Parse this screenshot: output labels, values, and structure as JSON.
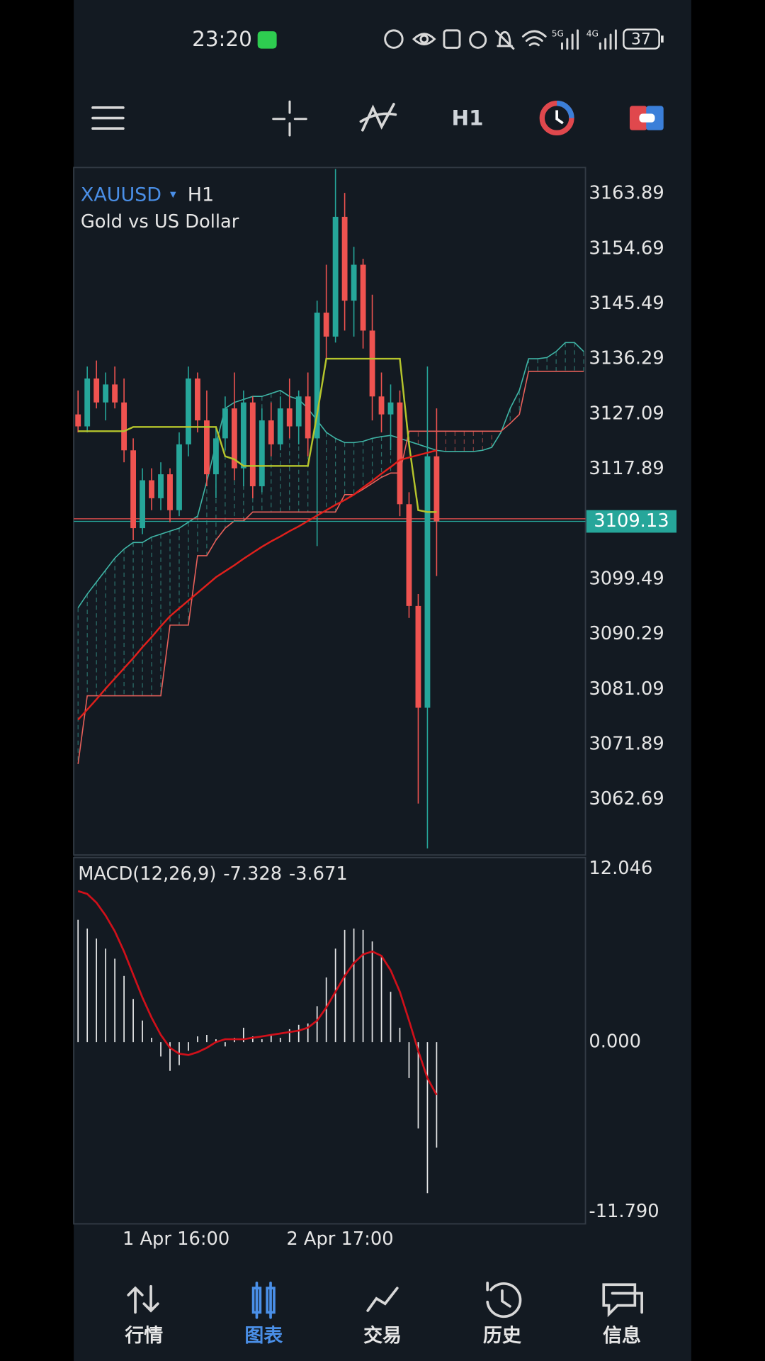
{
  "status_bar": {
    "time": "23:20",
    "battery": "37"
  },
  "toolbar": {
    "timeframe": "H1"
  },
  "chart": {
    "symbol": "XAUUSD",
    "timeframe": "H1",
    "description": "Gold vs US Dollar",
    "ylim": [
      3053.41,
      3168.24
    ],
    "yticks": [
      3163.89,
      3154.69,
      3145.49,
      3136.29,
      3127.09,
      3117.89,
      3099.49,
      3090.29,
      3081.09,
      3071.89,
      3062.69
    ],
    "current_price": 3109.13,
    "x_labels": [
      "1 Apr 16:00",
      "2 Apr 17:00"
    ],
    "up_color": "#26a69a",
    "down_color": "#ef5350",
    "candles": {
      "open": [
        3127,
        3125,
        3133,
        3129,
        3132,
        3129,
        3121,
        3108,
        3116,
        3113,
        3117,
        3111,
        3122,
        3133,
        3126,
        3117,
        3123,
        3128,
        3118,
        3129,
        3115,
        3126,
        3122,
        3128,
        3125,
        3130,
        3123,
        3144,
        3140,
        3160,
        3146,
        3152,
        3141,
        3130,
        3127,
        3129,
        3112,
        3095,
        3078,
        3120
      ],
      "high": [
        3131,
        3135,
        3136,
        3134,
        3135,
        3133,
        3123,
        3118,
        3118,
        3119,
        3118,
        3124,
        3135,
        3134,
        3131,
        3125,
        3130,
        3134,
        3131,
        3130,
        3128,
        3129,
        3130,
        3133,
        3131,
        3134,
        3146,
        3152,
        3168,
        3164,
        3155,
        3153,
        3147,
        3134,
        3132,
        3131,
        3114,
        3097,
        3135,
        3128
      ],
      "low": [
        3124,
        3124,
        3128,
        3126,
        3128,
        3119,
        3106,
        3107,
        3111,
        3111,
        3109,
        3110,
        3120,
        3124,
        3115,
        3113,
        3121,
        3116,
        3115,
        3113,
        3114,
        3120,
        3121,
        3123,
        3122,
        3120,
        3105,
        3136,
        3139,
        3141,
        3140,
        3138,
        3126,
        3124,
        3121,
        3110,
        3093,
        3062,
        3054.5,
        3100
      ],
      "close": [
        3125,
        3133,
        3129,
        3132,
        3129,
        3121,
        3108,
        3116,
        3113,
        3117,
        3111,
        3122,
        3133,
        3126,
        3117,
        3123,
        3128,
        3118,
        3129,
        3115,
        3126,
        3122,
        3128,
        3125,
        3130,
        3123,
        3144,
        3140,
        3160,
        3146,
        3152,
        3141,
        3130,
        3127,
        3129,
        3112,
        3095,
        3078,
        3120,
        3109.13
      ]
    },
    "ma": {
      "color": "#e0201c",
      "values": [
        3076,
        3077.7,
        3079.4,
        3081.2,
        3082.9,
        3084.6,
        3086.3,
        3088.1,
        3089.8,
        3091.6,
        3093.3,
        3094.6,
        3095.9,
        3097.2,
        3098.5,
        3099.8,
        3100.8,
        3101.8,
        3102.9,
        3103.9,
        3104.9,
        3105.8,
        3106.6,
        3107.5,
        3108.3,
        3109.2,
        3110.1,
        3111,
        3111.9,
        3112.7,
        3113.6,
        3114.8,
        3115.9,
        3117.1,
        3118.2,
        3119.4,
        3119.8,
        3120.2,
        3120.6,
        3121
      ]
    },
    "kijun": {
      "color": "#b5c42c",
      "values": [
        3124.2,
        3124.2,
        3124.2,
        3124.2,
        3124.2,
        3124.2,
        3124.9,
        3124.9,
        3124.9,
        3124.9,
        3124.9,
        3124.9,
        3124.9,
        3124.9,
        3124.9,
        3124.9,
        3120,
        3119.5,
        3118.4,
        3118.4,
        3118.4,
        3118.4,
        3118.4,
        3118.4,
        3118.4,
        3118.4,
        3127,
        3136.3,
        3136.3,
        3136.3,
        3136.3,
        3136.3,
        3136.3,
        3136.3,
        3136.3,
        3136.3,
        3122,
        3111,
        3110.7,
        3110.7
      ]
    },
    "cloud": {
      "span_a": {
        "color": "#3fb5a6",
        "values": [
          3094.7,
          3097,
          3099,
          3101,
          3103,
          3104.5,
          3105.6,
          3105.6,
          3106.5,
          3107,
          3107.5,
          3108,
          3109,
          3110,
          3115.8,
          3122,
          3128,
          3129,
          3129.5,
          3130,
          3130,
          3130.5,
          3131,
          3130,
          3129.5,
          3128,
          3126,
          3124,
          3123,
          3122.3,
          3122.3,
          3122.5,
          3123,
          3123.3,
          3123.5,
          3123,
          3122.5,
          3122,
          3121.5,
          3121,
          3120.8,
          3120.8,
          3120.8,
          3120.8,
          3121,
          3121.5,
          3124,
          3128,
          3131,
          3136.3,
          3136.3,
          3136.5,
          3137.5,
          3139,
          3139,
          3137.5
        ]
      },
      "span_b": {
        "color": "#e8605a",
        "values": [
          3068.6,
          3080,
          3080,
          3080,
          3080,
          3080,
          3080,
          3080,
          3080,
          3080,
          3091.8,
          3091.8,
          3091.8,
          3103.4,
          3103.4,
          3106,
          3108,
          3109.2,
          3109.2,
          3110.7,
          3110.7,
          3110.7,
          3110.7,
          3110.7,
          3110.7,
          3110.7,
          3110.7,
          3110.7,
          3110.7,
          3113.6,
          3113.6,
          3114.5,
          3115.5,
          3116.5,
          3117.2,
          3117.2,
          3124.2,
          3124.2,
          3124.2,
          3124.2,
          3124.2,
          3124.2,
          3124.2,
          3124.2,
          3124.2,
          3124.2,
          3124.2,
          3125.5,
          3127,
          3134.2,
          3134.2,
          3134.2,
          3134.2,
          3134.2,
          3134.2,
          3134.2
        ]
      }
    }
  },
  "macd": {
    "title": "MACD(12,26,9)",
    "main": -7.328,
    "signal": -3.671,
    "ylim": [
      -11.79,
      12.046
    ],
    "yticks": [
      12.046,
      {
        "value": 0,
        "label": "0.000"
      },
      {
        "value": -11.79,
        "label": "-11.790"
      }
    ],
    "histogram": {
      "color": "#ffffff",
      "values": [
        8.5,
        7.9,
        7.2,
        6.5,
        5.8,
        4.6,
        3,
        1.5,
        0.3,
        -1,
        -2,
        -1.6,
        -0.6,
        0.4,
        0.5,
        0.2,
        -0.3,
        0.3,
        1,
        0.4,
        0.2,
        0.5,
        0.3,
        0.9,
        1.2,
        1.3,
        2.5,
        4.5,
        6.5,
        7.8,
        7.9,
        7.8,
        7,
        6,
        3.5,
        1,
        -2.5,
        -6,
        -10.5,
        -7.328
      ]
    },
    "signal_line": {
      "color": "#d0101a",
      "values": [
        10.5,
        10.3,
        9.7,
        8.8,
        7.7,
        6.3,
        4.7,
        3.1,
        1.7,
        0.5,
        -0.4,
        -0.8,
        -0.9,
        -0.7,
        -0.4,
        0,
        0.2,
        0.2,
        0.2,
        0.3,
        0.4,
        0.5,
        0.6,
        0.7,
        0.8,
        1,
        1.5,
        2.4,
        3.5,
        4.6,
        5.5,
        6.1,
        6.3,
        6,
        5,
        3.5,
        1.5,
        -0.6,
        -2.5,
        -3.671
      ]
    }
  },
  "nav": {
    "items": [
      "行情",
      "图表",
      "交易",
      "历史",
      "信息"
    ],
    "active": 1,
    "active_color": "#4a8fe7",
    "color": "#e6e6e6"
  }
}
